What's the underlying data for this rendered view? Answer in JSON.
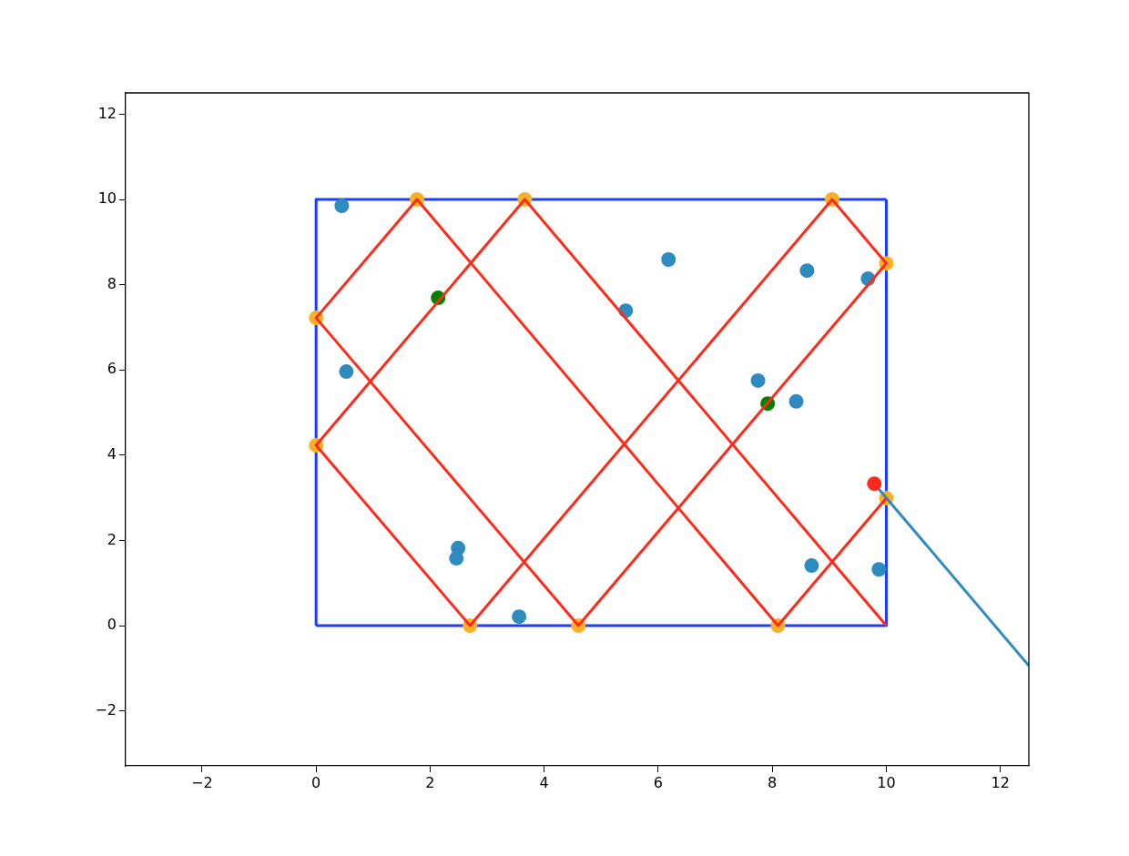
{
  "chart_data": {
    "type": "scatter",
    "xlim": [
      -3.34,
      12.5
    ],
    "ylim": [
      -3.29,
      12.5
    ],
    "xticks": [
      {
        "value": -2,
        "label": "−2"
      },
      0,
      2,
      4,
      6,
      8,
      10,
      12
    ],
    "yticks": [
      {
        "value": -2,
        "label": "−2"
      },
      0,
      2,
      4,
      6,
      8,
      10,
      12
    ],
    "series": [
      {
        "type": "line",
        "marker": "none",
        "color": "#ff2a1a",
        "x": [
          10,
          8.1,
          1.77,
          0,
          4.6,
          10,
          9.05,
          2.7,
          0,
          3.66,
          10
        ],
        "values": [
          2.99,
          0,
          10,
          7.22,
          0,
          8.5,
          10,
          0,
          4.23,
          10,
          0
        ]
      },
      {
        "type": "line",
        "marker": "none",
        "color": "#1a3cff",
        "x": [
          0,
          10,
          10
        ],
        "values": [
          0,
          0,
          10
        ]
      },
      {
        "type": "line",
        "marker": "none",
        "color": "#1a3cff",
        "x": [
          0,
          0,
          10
        ],
        "values": [
          0,
          10,
          10
        ]
      },
      {
        "type": "scatter",
        "marker": "circle",
        "color": "#fbb02a",
        "x": [
          1.77,
          3.66,
          9.05,
          0,
          0,
          10,
          10,
          2.7,
          4.6,
          8.1
        ],
        "values": [
          10,
          10,
          10,
          7.22,
          4.23,
          8.5,
          2.99,
          0,
          0,
          0
        ]
      },
      {
        "type": "scatter",
        "marker": "circle",
        "color": "#2e8bc0",
        "x": [
          0.45,
          0.53,
          2.49,
          2.46,
          3.56,
          5.43,
          6.18,
          7.75,
          8.42,
          8.61,
          9.68,
          8.69,
          9.87
        ],
        "values": [
          9.85,
          5.96,
          1.82,
          1.58,
          0.21,
          7.39,
          8.59,
          5.75,
          5.26,
          8.33,
          8.14,
          1.41,
          1.32
        ]
      },
      {
        "type": "scatter",
        "marker": "circle",
        "color": "#008000",
        "x": [
          2.14,
          7.92
        ],
        "values": [
          7.69,
          5.21
        ]
      },
      {
        "type": "line",
        "marker": "none",
        "color": "#2e8bc0",
        "x": [
          9.79,
          12.5
        ],
        "values": [
          3.33,
          -0.94
        ]
      },
      {
        "type": "scatter",
        "marker": "circle",
        "color": "#ff2a1a",
        "x": [
          9.79
        ],
        "values": [
          3.33
        ]
      }
    ]
  }
}
